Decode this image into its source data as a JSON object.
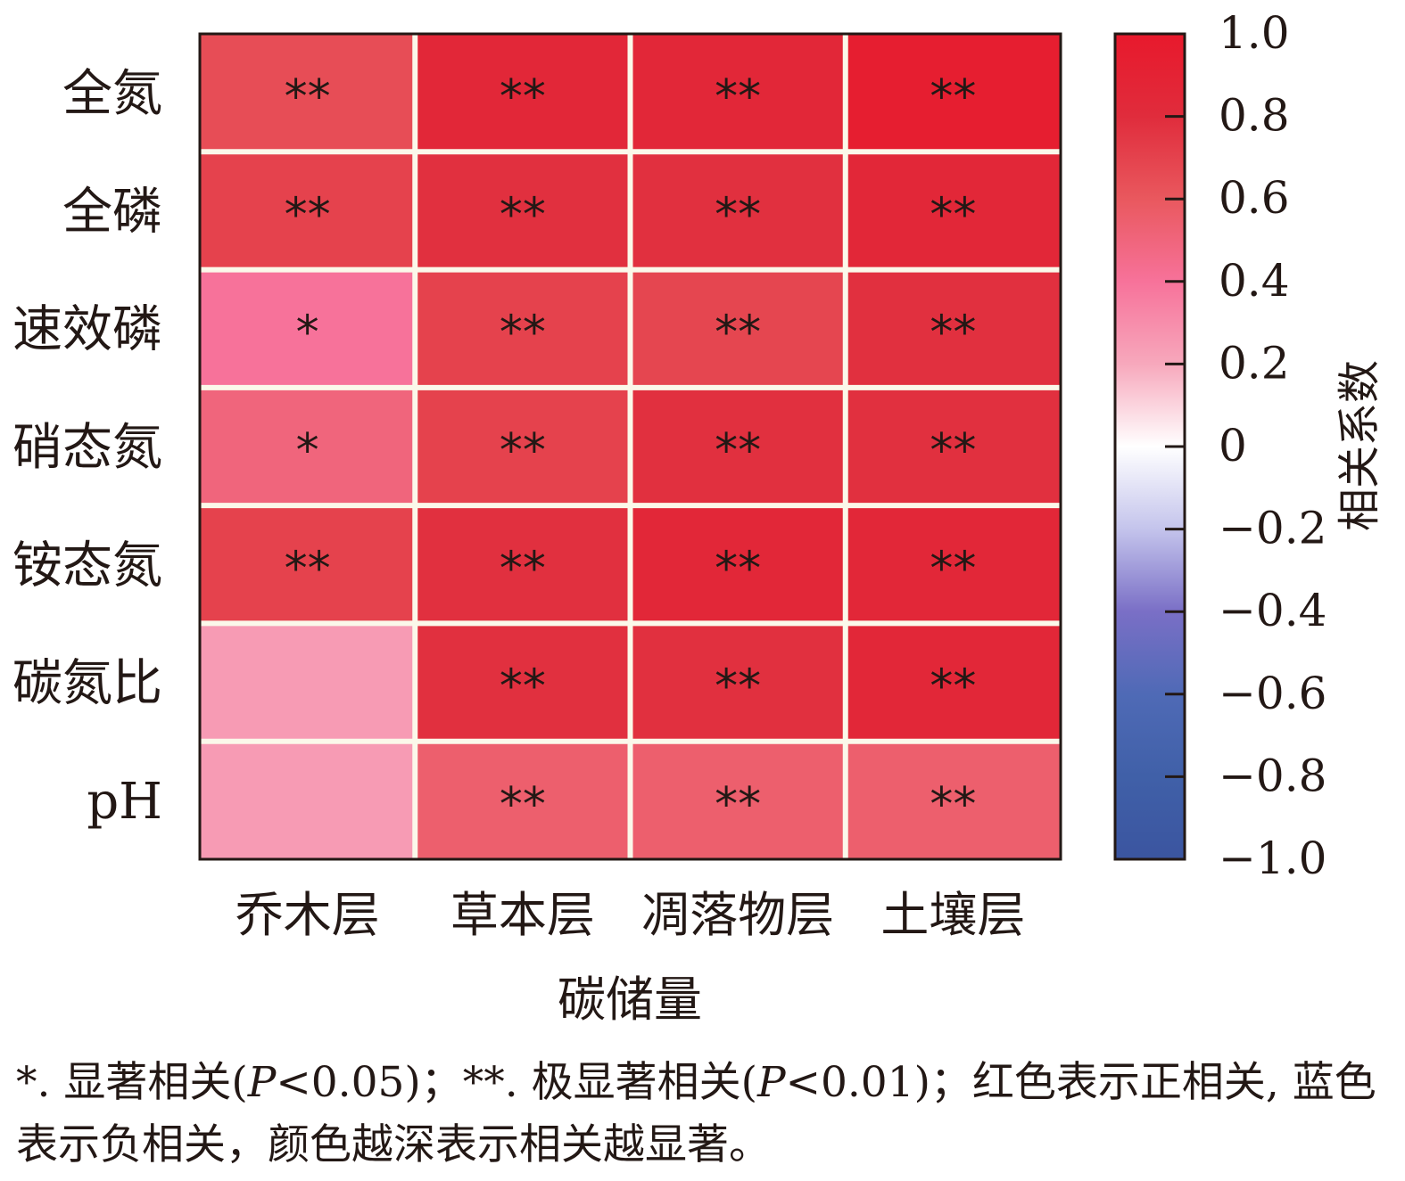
{
  "chart_data": {
    "type": "heatmap",
    "rows": [
      "全氮",
      "全磷",
      "速效磷",
      "硝态氮",
      "铵态氮",
      "碳氮比",
      "pH"
    ],
    "columns": [
      "乔木层",
      "草本层",
      "凋落物层",
      "土壤层"
    ],
    "values": [
      [
        0.65,
        0.85,
        0.85,
        0.95
      ],
      [
        0.7,
        0.78,
        0.78,
        0.85
      ],
      [
        0.4,
        0.7,
        0.68,
        0.78
      ],
      [
        0.5,
        0.7,
        0.78,
        0.78
      ],
      [
        0.7,
        0.78,
        0.85,
        0.85
      ],
      [
        0.25,
        0.78,
        0.78,
        0.85
      ],
      [
        0.25,
        0.55,
        0.55,
        0.55
      ]
    ],
    "significance": [
      [
        "**",
        "**",
        "**",
        "**"
      ],
      [
        "**",
        "**",
        "**",
        "**"
      ],
      [
        "*",
        "**",
        "**",
        "**"
      ],
      [
        "*",
        "**",
        "**",
        "**"
      ],
      [
        "**",
        "**",
        "**",
        "**"
      ],
      [
        "",
        "**",
        "**",
        "**"
      ],
      [
        "",
        "**",
        "**",
        "**"
      ]
    ],
    "xlabel": "碳储量",
    "colorbar": {
      "label": "相关系数",
      "range": [
        -1.0,
        1.0
      ],
      "ticks": [
        1.0,
        0.8,
        0.6,
        0.4,
        0.2,
        0,
        -0.2,
        -0.4,
        -0.6,
        -0.8,
        -1.0
      ],
      "tick_labels": [
        "1.0",
        "0.8",
        "0.6",
        "0.4",
        "0.2",
        "0",
        "−0.2",
        "−0.4",
        "−0.6",
        "−0.8",
        "−1.0"
      ],
      "colors": {
        "-1.0": "#3b55a0",
        "-0.8": "#4060a8",
        "-0.6": "#4f6ab6",
        "-0.4": "#7a6fc6",
        "-0.2": "#c4c4ec",
        "0": "#ffffff",
        "0.2": "#f7a8bc",
        "0.4": "#f7729a",
        "0.6": "#e9585e",
        "0.8": "#e02c3c",
        "1.0": "#e8192c"
      }
    }
  },
  "footnote": {
    "part1": "*. 显著相关(",
    "p1": "P",
    "part2": "<0.05)；**. 极显著相关(",
    "p2": "P",
    "part3": "<0.01)；红色表示正相关, 蓝色表示负相关，颜色越深表示相关越显著。"
  }
}
